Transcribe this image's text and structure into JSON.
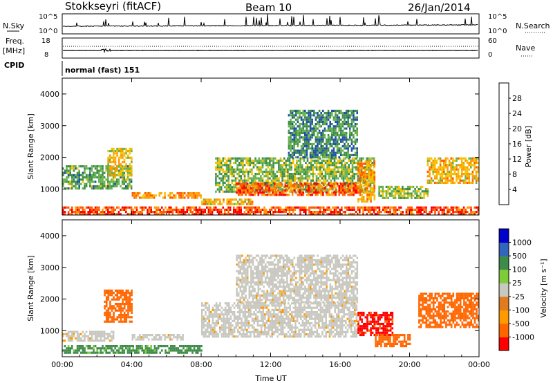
{
  "header": {
    "station": "Stokkseyri (fitACF)",
    "beam": "Beam 10",
    "date": "26/Jan/2014"
  },
  "noise_panel": {
    "left_label": "N.Sky",
    "left_ticks": [
      "10^5",
      "10^0"
    ],
    "right_label": "N.Search",
    "right_ticks": [
      "10^5",
      "10^0"
    ]
  },
  "freq_panel": {
    "left_label_1": "Freq.",
    "left_label_2": "[MHz]",
    "left_ticks": [
      "18",
      "8"
    ],
    "right_label": "Nave",
    "right_ticks": [
      "60",
      "0"
    ]
  },
  "cpid_panel": {
    "label": "CPID",
    "value": "normal (fast) 151"
  },
  "colors": {
    "power_scale": [
      "#0000ff",
      "#1f4fa8",
      "#3f8c4a",
      "#66b34d",
      "#f2c200",
      "#ff9900",
      "#ff5a00",
      "#ff0000"
    ],
    "velocity_scale": [
      "#ff0000",
      "#ff6600",
      "#ff9900",
      "#e07b1f",
      "#c8c8c0",
      "#7fcc3a",
      "#3f8c4a",
      "#3366bb",
      "#0000cc"
    ]
  },
  "chart_data": [
    {
      "type": "heatmap",
      "name": "power",
      "ylabel": "Slant Range [km]",
      "y_ticks": [
        "1000",
        "2000",
        "3000",
        "4000"
      ],
      "ylim": [
        180,
        4500
      ],
      "x_ticks": [
        "00:00",
        "04:00",
        "08:00",
        "12:00",
        "16:00",
        "20:00",
        "00:00"
      ],
      "xlim_hours": [
        0,
        24
      ],
      "colorbar_label": "Power [dB]",
      "colorbar_ticks": [
        "4",
        "8",
        "12",
        "16",
        "20",
        "24",
        "28"
      ],
      "colorbar_range": [
        0,
        32
      ],
      "regions": [
        {
          "t": [
            0.0,
            24.0
          ],
          "r": [
            200,
            450
          ],
          "level": 27
        },
        {
          "t": [
            0.0,
            4.0
          ],
          "r": [
            1000,
            1750
          ],
          "level": 12
        },
        {
          "t": [
            2.6,
            4.0
          ],
          "r": [
            1400,
            2300
          ],
          "level": 18
        },
        {
          "t": [
            4.0,
            8.0
          ],
          "r": [
            700,
            900
          ],
          "level": 22
        },
        {
          "t": [
            8.0,
            11.0
          ],
          "r": [
            500,
            700
          ],
          "level": 20
        },
        {
          "t": [
            8.8,
            18.0
          ],
          "r": [
            900,
            2000
          ],
          "level": 14
        },
        {
          "t": [
            10.0,
            17.0
          ],
          "r": [
            800,
            1200
          ],
          "level": 26
        },
        {
          "t": [
            13.0,
            17.0
          ],
          "r": [
            2000,
            3500
          ],
          "level": 10
        },
        {
          "t": [
            17.0,
            18.0
          ],
          "r": [
            600,
            1900
          ],
          "level": 22
        },
        {
          "t": [
            18.2,
            21.0
          ],
          "r": [
            700,
            1100
          ],
          "level": 14
        },
        {
          "t": [
            21.0,
            24.0
          ],
          "r": [
            1200,
            2000
          ],
          "level": 20
        }
      ]
    },
    {
      "type": "heatmap",
      "name": "velocity",
      "ylabel": "Slant Range [km]",
      "y_ticks": [
        "1000",
        "2000",
        "3000",
        "4000"
      ],
      "ylim": [
        180,
        4500
      ],
      "x_ticks": [
        "00:00",
        "04:00",
        "08:00",
        "12:00",
        "16:00",
        "20:00",
        "00:00"
      ],
      "xlim_hours": [
        0,
        24
      ],
      "xlabel": "Time UT",
      "colorbar_label": "Velocity [m s⁻¹]",
      "colorbar_ticks": [
        "1000",
        "500",
        "100",
        "25",
        "-25",
        "-100",
        "-500",
        "-1000"
      ],
      "colorbar_range": [
        -1000,
        1000
      ],
      "regions": [
        {
          "t": [
            0.0,
            8.0
          ],
          "r": [
            300,
            550
          ],
          "level": 110
        },
        {
          "t": [
            0.0,
            3.0
          ],
          "r": [
            700,
            1000
          ],
          "level": 0
        },
        {
          "t": [
            2.4,
            4.0
          ],
          "r": [
            1300,
            2300
          ],
          "level": -300
        },
        {
          "t": [
            4.0,
            7.0
          ],
          "r": [
            700,
            900
          ],
          "level": 0
        },
        {
          "t": [
            8.0,
            17.0
          ],
          "r": [
            800,
            1900
          ],
          "level": 0
        },
        {
          "t": [
            10.0,
            17.0
          ],
          "r": [
            1900,
            3400
          ],
          "level": 0
        },
        {
          "t": [
            17.0,
            19.0
          ],
          "r": [
            900,
            1600
          ],
          "level": -1000
        },
        {
          "t": [
            18.0,
            20.0
          ],
          "r": [
            500,
            900
          ],
          "level": -300
        },
        {
          "t": [
            20.5,
            24.0
          ],
          "r": [
            1100,
            2200
          ],
          "level": -300
        }
      ]
    }
  ]
}
